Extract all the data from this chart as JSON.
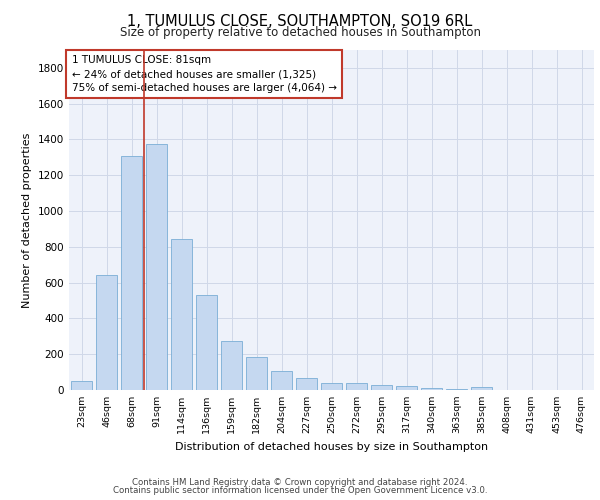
{
  "title": "1, TUMULUS CLOSE, SOUTHAMPTON, SO19 6RL",
  "subtitle": "Size of property relative to detached houses in Southampton",
  "xlabel": "Distribution of detached houses by size in Southampton",
  "ylabel": "Number of detached properties",
  "categories": [
    "23sqm",
    "46sqm",
    "68sqm",
    "91sqm",
    "114sqm",
    "136sqm",
    "159sqm",
    "182sqm",
    "204sqm",
    "227sqm",
    "250sqm",
    "272sqm",
    "295sqm",
    "317sqm",
    "340sqm",
    "363sqm",
    "385sqm",
    "408sqm",
    "431sqm",
    "453sqm",
    "476sqm"
  ],
  "values": [
    50,
    640,
    1310,
    1375,
    845,
    530,
    275,
    185,
    105,
    65,
    38,
    38,
    30,
    22,
    10,
    8,
    18,
    0,
    0,
    0,
    0
  ],
  "bar_color": "#c5d8f0",
  "bar_edge_color": "#7aaed6",
  "grid_color": "#d0d8e8",
  "vline_color": "#c0392b",
  "annotation_text": "1 TUMULUS CLOSE: 81sqm\n← 24% of detached houses are smaller (1,325)\n75% of semi-detached houses are larger (4,064) →",
  "annotation_box_color": "#c0392b",
  "ylim": [
    0,
    1900
  ],
  "yticks": [
    0,
    200,
    400,
    600,
    800,
    1000,
    1200,
    1400,
    1600,
    1800
  ],
  "footer_line1": "Contains HM Land Registry data © Crown copyright and database right 2024.",
  "footer_line2": "Contains public sector information licensed under the Open Government Licence v3.0.",
  "background_color": "#eef2fa"
}
